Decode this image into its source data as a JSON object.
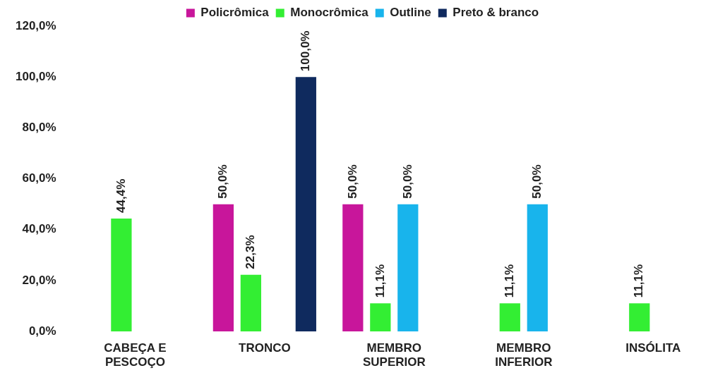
{
  "chart_data": {
    "type": "bar",
    "categories": [
      "CABEÇA E PESCOÇO",
      "TRONCO",
      "MEMBRO SUPERIOR",
      "MEMBRO INFERIOR",
      "INSÓLITA"
    ],
    "series": [
      {
        "name": "Policrômica",
        "color": "#c8169b",
        "values": [
          null,
          50.0,
          50.0,
          null,
          null
        ],
        "value_labels": [
          null,
          "50,0%",
          "50,0%",
          null,
          null
        ]
      },
      {
        "name": "Monocrômica",
        "color": "#33ee33",
        "values": [
          44.4,
          22.3,
          11.1,
          11.1,
          11.1
        ],
        "value_labels": [
          "44,4%",
          "22,3%",
          "11,1%",
          "11,1%",
          "11,1%"
        ]
      },
      {
        "name": "Outline",
        "color": "#18b4ec",
        "values": [
          null,
          null,
          50.0,
          50.0,
          null
        ],
        "value_labels": [
          null,
          null,
          "50,0%",
          "50,0%",
          null
        ]
      },
      {
        "name": "Preto & branco",
        "color": "#0f2a5e",
        "values": [
          null,
          100.0,
          null,
          null,
          null
        ],
        "value_labels": [
          null,
          "100,0%",
          null,
          null,
          null
        ]
      }
    ],
    "ylim": [
      0,
      120
    ],
    "yticks": [
      {
        "value": 0,
        "label": "0,0%"
      },
      {
        "value": 20,
        "label": "20,0%"
      },
      {
        "value": 40,
        "label": "40,0%"
      },
      {
        "value": 60,
        "label": "60,0%"
      },
      {
        "value": 80,
        "label": "80,0%"
      },
      {
        "value": 100,
        "label": "100,0%"
      },
      {
        "value": 120,
        "label": "120,0%"
      }
    ],
    "grid": false,
    "legend": "top"
  }
}
